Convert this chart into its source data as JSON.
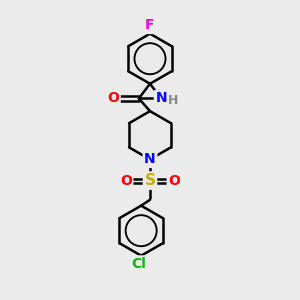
{
  "background_color": "#ebebeb",
  "bond_color": "#000000",
  "bond_width": 1.8,
  "atom_colors": {
    "F": "#ee00ee",
    "O": "#ff0000",
    "N": "#0000ff",
    "S": "#ccaa00",
    "Cl": "#00bb00",
    "H": "#888888"
  },
  "font_size": 9,
  "figsize": [
    3.0,
    3.0
  ],
  "dpi": 100
}
